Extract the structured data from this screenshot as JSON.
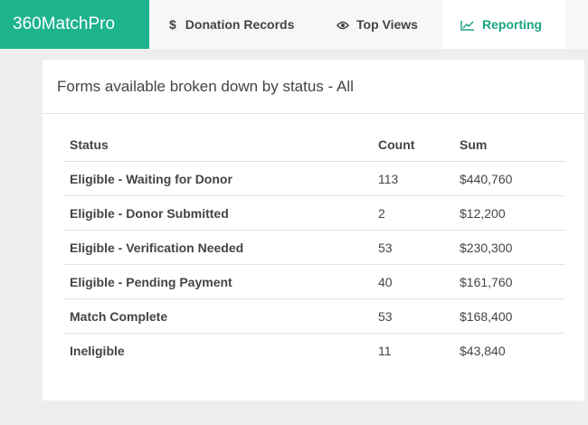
{
  "nav": {
    "brand": "360MatchPro",
    "items": [
      {
        "icon": "$",
        "label": "Donation Records"
      },
      {
        "label": "Top Views"
      },
      {
        "label": "Reporting"
      }
    ]
  },
  "panel": {
    "title": "Forms available broken down by status - All"
  },
  "table": {
    "headers": [
      "Status",
      "Count",
      "Sum"
    ],
    "rows": [
      [
        "Eligible - Waiting for Donor",
        "113",
        "$440,760"
      ],
      [
        "Eligible - Donor Submitted",
        "2",
        "$12,200"
      ],
      [
        "Eligible - Verification Needed",
        "53",
        "$230,300"
      ],
      [
        "Eligible - Pending Payment",
        "40",
        "$161,760"
      ],
      [
        "Match Complete",
        "53",
        "$168,400"
      ],
      [
        "Ineligible",
        "11",
        "$43,840"
      ]
    ]
  }
}
